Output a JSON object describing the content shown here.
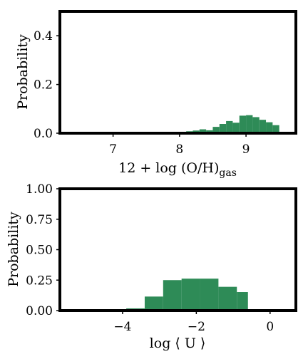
{
  "chart_data": [
    {
      "type": "bar",
      "xlabel": "12 + log (O/H)",
      "xlabel_sub": "gas",
      "ylabel": "Probability",
      "xlim": [
        6.2,
        9.75
      ],
      "ylim": [
        0.0,
        0.5
      ],
      "xticks": [
        7,
        8,
        9
      ],
      "yticks": [
        0.0,
        0.2,
        0.4
      ],
      "xtick_labels": [
        "7",
        "8",
        "9"
      ],
      "ytick_labels": [
        "0.0",
        "0.2",
        "0.4"
      ],
      "color": "#2e8b57",
      "bin_edges": [
        7.9,
        8.0,
        8.1,
        8.2,
        8.3,
        8.4,
        8.5,
        8.6,
        8.7,
        8.8,
        8.9,
        9.0,
        9.1,
        9.2,
        9.3,
        9.4,
        9.5
      ],
      "values": [
        0.002,
        0.005,
        0.008,
        0.011,
        0.016,
        0.012,
        0.026,
        0.038,
        0.05,
        0.043,
        0.072,
        0.074,
        0.066,
        0.055,
        0.045,
        0.033
      ]
    },
    {
      "type": "bar",
      "xlabel": "log ⟨ U ⟩",
      "ylabel": "Probability",
      "xlim": [
        -5.7,
        0.7
      ],
      "ylim": [
        0.0,
        1.0
      ],
      "xticks": [
        -4,
        -2,
        0
      ],
      "yticks": [
        0.0,
        0.25,
        0.5,
        0.75,
        1.0
      ],
      "xtick_labels": [
        "−4",
        "−2",
        "0"
      ],
      "ytick_labels": [
        "0.00",
        "0.25",
        "0.50",
        "0.75",
        "1.00"
      ],
      "color": "#2e8b57",
      "bin_edges": [
        -3.9,
        -3.4,
        -2.9,
        -2.4,
        -1.9,
        -1.4,
        -0.9,
        -0.6
      ],
      "values": [
        0.018,
        0.115,
        0.25,
        0.262,
        0.262,
        0.195,
        0.152
      ]
    }
  ]
}
